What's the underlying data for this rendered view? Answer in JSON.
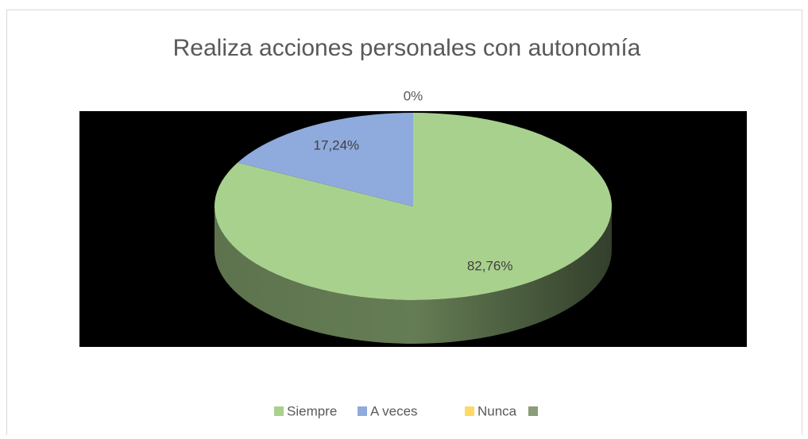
{
  "chart_data": {
    "type": "pie3d",
    "title": "Realiza acciones personales con autonomía",
    "categories": [
      "Siempre",
      "A veces",
      "Nunca",
      null
    ],
    "values": [
      82.76,
      17.24,
      0,
      null
    ],
    "value_labels": [
      "82,76%",
      "17,24%",
      "0%",
      null
    ],
    "colors": [
      "#a9d18e",
      "#8faadc",
      "#ffd966",
      "#8a9e78"
    ],
    "legend": "bottom"
  }
}
